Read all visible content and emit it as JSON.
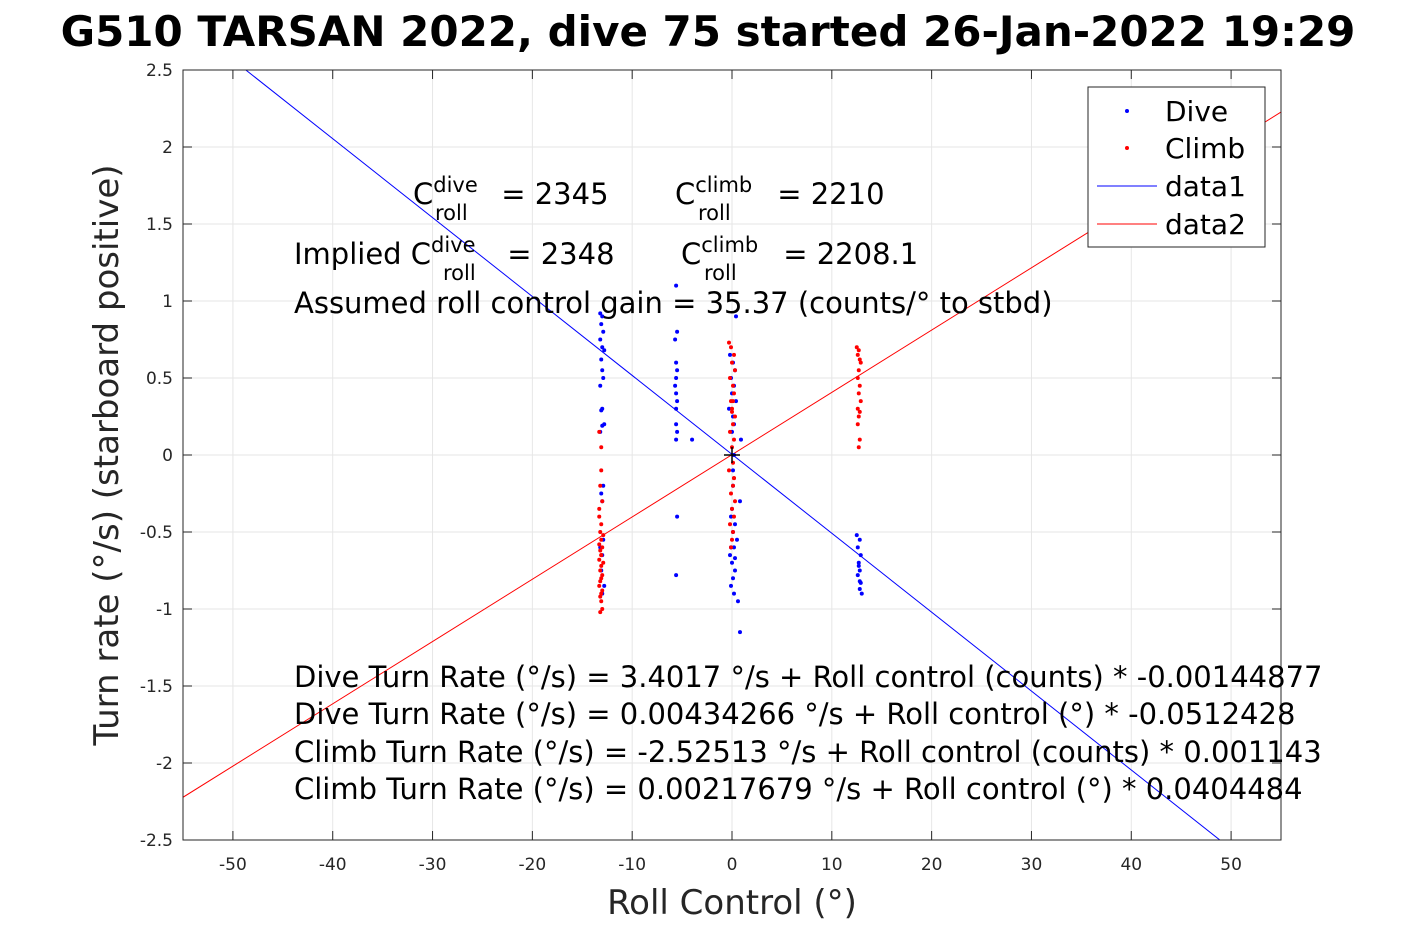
{
  "chart_data": {
    "type": "scatter",
    "title": "G510 TARSAN 2022, dive 75 started 26-Jan-2022 19:29",
    "xlabel": "Roll Control (°)",
    "ylabel": "Turn rate (°/s) (starboard positive)",
    "xlim": [
      -55,
      55
    ],
    "ylim": [
      -2.5,
      2.5
    ],
    "xticks": [
      -50,
      -40,
      -30,
      -20,
      -10,
      0,
      10,
      20,
      30,
      40,
      50
    ],
    "yticks": [
      -2.5,
      -2,
      -1.5,
      -1,
      -0.5,
      0,
      0.5,
      1,
      1.5,
      2,
      2.5
    ],
    "xtick_labels": [
      "-50",
      "-40",
      "-30",
      "-20",
      "-10",
      "0",
      "10",
      "20",
      "30",
      "40",
      "50"
    ],
    "ytick_labels": [
      "-2.5",
      "-2",
      "-1.5",
      "-1",
      "-0.5",
      "0",
      "0.5",
      "1",
      "1.5",
      "2",
      "2.5"
    ],
    "grid": true,
    "legend_position": "top-right",
    "series": [
      {
        "name": "Dive",
        "kind": "scatter",
        "color": "#0000ff",
        "x": [
          -13.2,
          -13,
          -13.1,
          -12.9,
          -13.2,
          -13,
          -12.8,
          -13.1,
          -13,
          -12.9,
          -13.2,
          -13,
          -13.1,
          -12.8,
          -13,
          -13.2,
          -12.9,
          -13.1,
          -13,
          -12.9,
          -13.2,
          -13,
          -13.1,
          -12.8,
          -13,
          -5.6,
          -5.5,
          -5.7,
          -5.6,
          -5.5,
          -5.6,
          -5.7,
          -5.6,
          -5.5,
          -5.6,
          -5.6,
          -5.5,
          -5.6,
          -5.5,
          -5.6,
          -4,
          -0.2,
          0.1,
          0.3,
          -0.1,
          0.2,
          0,
          0.4,
          -0.3,
          0.1,
          0.2,
          0,
          -0.1,
          0.3,
          0.1,
          0.5,
          0.2,
          -0.2,
          0,
          0.3,
          0.1,
          -0.1,
          0.2,
          0.4,
          0.6,
          0.8,
          0.9,
          0.8,
          0.1,
          0.2,
          -0.1,
          0.3,
          0,
          0.1,
          12.5,
          12.8,
          12.6,
          12.9,
          12.7,
          12.8,
          12.6,
          12.9,
          12.8,
          13,
          12.7,
          12.8
        ],
        "y": [
          0.92,
          0.9,
          0.85,
          0.8,
          0.75,
          0.7,
          0.68,
          0.62,
          0.55,
          0.5,
          0.45,
          0.3,
          0.29,
          0.2,
          0.19,
          0.15,
          -0.2,
          -0.25,
          -0.3,
          -0.55,
          -0.6,
          -0.65,
          -0.75,
          -0.85,
          -0.9,
          1.1,
          0.8,
          0.75,
          0.6,
          0.55,
          0.5,
          0.45,
          0.4,
          0.35,
          0.3,
          0.2,
          0.15,
          0.1,
          -0.4,
          -0.78,
          0.1,
          0.65,
          0.6,
          0.55,
          0.5,
          0.45,
          0.4,
          0.35,
          0.3,
          0.25,
          0.2,
          0.15,
          -0.4,
          -0.45,
          -0.5,
          -0.55,
          -0.6,
          -0.65,
          -0.7,
          -0.75,
          -0.8,
          -0.85,
          -0.9,
          0.9,
          -0.95,
          -1.15,
          0.1,
          -0.3,
          -0.2,
          0,
          -0.6,
          -0.67,
          -0.35,
          -0.1,
          -0.52,
          -0.55,
          -0.6,
          -0.65,
          -0.72,
          -0.75,
          -0.78,
          -0.83,
          -0.87,
          -0.9,
          -0.7,
          -0.82
        ]
      },
      {
        "name": "Climb",
        "kind": "scatter",
        "color": "#ff0000",
        "x": [
          -13.3,
          -13.1,
          -13.2,
          -13,
          -13.3,
          -13.1,
          -13.2,
          -12.9,
          -13.1,
          -13.3,
          -13,
          -13.2,
          -13.1,
          -13.3,
          -12.9,
          -13.1,
          -13.2,
          -13,
          -13.1,
          -13.2,
          -13.3,
          -13,
          -13.1,
          -13.2,
          -13.1,
          -13,
          -13.2,
          -13.1,
          -13.3,
          -13.1,
          -0.3,
          -0.1,
          0.2,
          0,
          0.3,
          -0.2,
          0.1,
          0.2,
          -0.1,
          0,
          0.3,
          0.1,
          -0.2,
          0.2,
          0,
          0.1,
          -0.3,
          0.2,
          0.1,
          -0.1,
          0.3,
          0,
          0.2,
          -0.2,
          0.1,
          0,
          -0.1,
          0.2,
          0.1,
          0,
          12.5,
          12.7,
          12.6,
          12.8,
          12.9,
          12.7,
          12.6,
          12.8,
          12.7,
          12.9,
          12.6,
          12.8,
          12.7,
          12.6,
          12.8,
          12.7
        ],
        "y": [
          0.15,
          -0.1,
          -0.2,
          -0.3,
          -0.4,
          -0.45,
          -0.5,
          -0.52,
          -0.55,
          -0.58,
          -0.6,
          -0.62,
          -0.65,
          -0.68,
          -0.7,
          -0.72,
          -0.75,
          -0.78,
          -0.8,
          -0.82,
          -0.85,
          -0.88,
          -0.9,
          -0.92,
          -0.95,
          -1,
          -1.02,
          0.05,
          -0.35,
          -0.65,
          0.73,
          0.7,
          0.65,
          0.6,
          0.55,
          0.5,
          0.45,
          0.4,
          0.35,
          0.3,
          0.25,
          0.2,
          0.15,
          0.1,
          0.05,
          -0.05,
          -0.1,
          -0.15,
          -0.2,
          -0.25,
          -0.3,
          -0.35,
          -0.4,
          -0.45,
          -0.5,
          -0.55,
          -0.6,
          -0.15,
          0.35,
          0.28,
          0.7,
          0.68,
          0.65,
          0.62,
          0.6,
          0.55,
          0.5,
          0.45,
          0.4,
          0.35,
          0.3,
          0.28,
          0.25,
          0.2,
          0.1,
          0.05
        ]
      },
      {
        "name": "data1",
        "kind": "line",
        "color": "#0000ff",
        "x": [
          -55,
          55
        ],
        "y": [
          2.8226,
          -2.814
        ]
      },
      {
        "name": "data2",
        "kind": "line",
        "color": "#ff0000",
        "x": [
          -55,
          55
        ],
        "y": [
          -2.2225,
          2.2268
        ]
      }
    ],
    "center_marker": {
      "x": 0,
      "y": 0,
      "color": "#000000"
    },
    "annotations": {
      "c_dive_prefix": "C",
      "c_dive_sup": "dive",
      "c_dive_sub": "roll",
      "c_dive_value": " = 2345",
      "c_climb_prefix": "C",
      "c_climb_sup": "climb",
      "c_climb_sub": "roll",
      "c_climb_value": " = 2210",
      "implied_prefix": "Implied C",
      "implied_dive_sup": "dive",
      "implied_dive_sub": "roll",
      "implied_dive_value": " = 2348",
      "implied_climb_prefix": "C",
      "implied_climb_sup": "climb",
      "implied_climb_sub": "roll",
      "implied_climb_value": " = 2208.1",
      "gain_line": "Assumed roll control gain = 35.37 (counts/° to stbd)",
      "eq1": "Dive Turn Rate (°/s) = 3.4017 °/s + Roll control (counts) * -0.00144877",
      "eq2": "Dive Turn Rate (°/s) = 0.00434266 °/s + Roll control (°) * -0.0512428",
      "eq3": "Climb Turn Rate (°/s) = -2.52513 °/s + Roll control (counts) * 0.001143",
      "eq4": "Climb Turn Rate (°/s) = 0.00217679 °/s + Roll control (°) * 0.0404484"
    }
  }
}
